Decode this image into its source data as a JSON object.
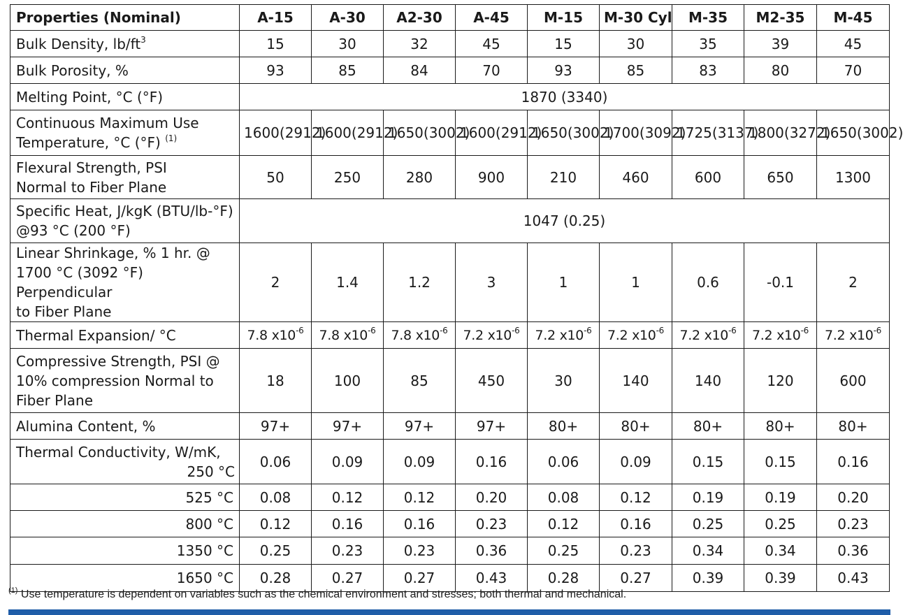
{
  "table": {
    "header_label": "Properties (Nominal)",
    "columns": [
      "A-15",
      "A-30",
      "A2-30",
      "A-45",
      "M-15",
      "M-30 Cyl",
      "M-35",
      "M2-35",
      "M-45"
    ],
    "rows": {
      "bulk_density": {
        "label": "Bulk Density, lb/ft",
        "label_sup": "3",
        "values": [
          "15",
          "30",
          "32",
          "45",
          "15",
          "30",
          "35",
          "39",
          "45"
        ]
      },
      "bulk_porosity": {
        "label": "Bulk Porosity, %",
        "values": [
          "93",
          "85",
          "84",
          "70",
          "93",
          "85",
          "83",
          "80",
          "70"
        ]
      },
      "melting_point": {
        "label": "Melting Point, °C (°F)",
        "value": "1870 (3340)"
      },
      "max_use_temp": {
        "label_line1": "Continuous Maximum Use",
        "label_line2": "Temperature, °C (°F)",
        "label_sup": "(1)",
        "values": [
          [
            "1600",
            "(2912)"
          ],
          [
            "1600",
            "(2912)"
          ],
          [
            "1650",
            "(3002)"
          ],
          [
            "1600",
            "(2912)"
          ],
          [
            "1650",
            "(3002)"
          ],
          [
            "1700",
            "(3092)"
          ],
          [
            "1725",
            "(3137)"
          ],
          [
            "1800",
            "(3272)"
          ],
          [
            "1650",
            "(3002)"
          ]
        ]
      },
      "flexural_strength": {
        "label_line1": "Flexural Strength, PSI",
        "label_line2": "Normal to Fiber Plane",
        "values": [
          "50",
          "250",
          "280",
          "900",
          "210",
          "460",
          "600",
          "650",
          "1300"
        ]
      },
      "specific_heat": {
        "label_line1": "Specific Heat, J/kgK (BTU/lb-°F)",
        "label_line2": "@93 °C (200 °F)",
        "value": "1047 (0.25)"
      },
      "linear_shrinkage": {
        "label_line1": "Linear Shrinkage, % 1 hr. @",
        "label_line2": "1700 °C (3092 °F) Perpendicular",
        "label_line3": "to Fiber Plane",
        "values": [
          "2",
          "1.4",
          "1.2",
          "3",
          "1",
          "1",
          "0.6",
          "-0.1",
          "2"
        ]
      },
      "thermal_expansion": {
        "label": "Thermal Expansion/ °C",
        "values": [
          {
            "base": "7.8 x10",
            "exp": "-6"
          },
          {
            "base": "7.8 x10",
            "exp": "-6"
          },
          {
            "base": "7.8 x10",
            "exp": "-6"
          },
          {
            "base": "7.2 x10",
            "exp": "-6"
          },
          {
            "base": "7.2 x10",
            "exp": "-6"
          },
          {
            "base": "7.2 x10",
            "exp": "-6"
          },
          {
            "base": "7.2 x10",
            "exp": "-6"
          },
          {
            "base": "7.2 x10",
            "exp": "-6"
          },
          {
            "base": "7.2 x10",
            "exp": "-6"
          }
        ]
      },
      "compressive_strength": {
        "label_line1": "Compressive Strength, PSI @",
        "label_line2": "10% compression Normal to",
        "label_line3": "Fiber Plane",
        "values": [
          "18",
          "100",
          "85",
          "450",
          "30",
          "140",
          "140",
          "120",
          "600"
        ]
      },
      "alumina_content": {
        "label": "Alumina Content, %",
        "values": [
          "97+",
          "97+",
          "97+",
          "97+",
          "80+",
          "80+",
          "80+",
          "80+",
          "80+"
        ]
      },
      "thermal_conductivity": {
        "label_line1": "Thermal Conductivity, W/mK,",
        "rows": [
          {
            "temp": "250 °C",
            "values": [
              "0.06",
              "0.09",
              "0.09",
              "0.16",
              "0.06",
              "0.09",
              "0.15",
              "0.15",
              "0.16"
            ]
          },
          {
            "temp": "525 °C",
            "values": [
              "0.08",
              "0.12",
              "0.12",
              "0.20",
              "0.08",
              "0.12",
              "0.19",
              "0.19",
              "0.20"
            ]
          },
          {
            "temp": "800 °C",
            "values": [
              "0.12",
              "0.16",
              "0.16",
              "0.23",
              "0.12",
              "0.16",
              "0.25",
              "0.25",
              "0.23"
            ]
          },
          {
            "temp": "1350 °C",
            "values": [
              "0.25",
              "0.23",
              "0.23",
              "0.36",
              "0.25",
              "0.23",
              "0.34",
              "0.34",
              "0.36"
            ]
          },
          {
            "temp": "1650 °C",
            "values": [
              "0.28",
              "0.27",
              "0.27",
              "0.43",
              "0.28",
              "0.27",
              "0.39",
              "0.39",
              "0.43"
            ]
          }
        ]
      }
    }
  },
  "footnote": {
    "marker": "(1)",
    "text": " Use temperature is dependent on variables such as the chemical environment and stresses; both thermal and mechanical."
  },
  "colors": {
    "bottom_bar": "#1f5da8",
    "rule": "#1a1a1a"
  }
}
